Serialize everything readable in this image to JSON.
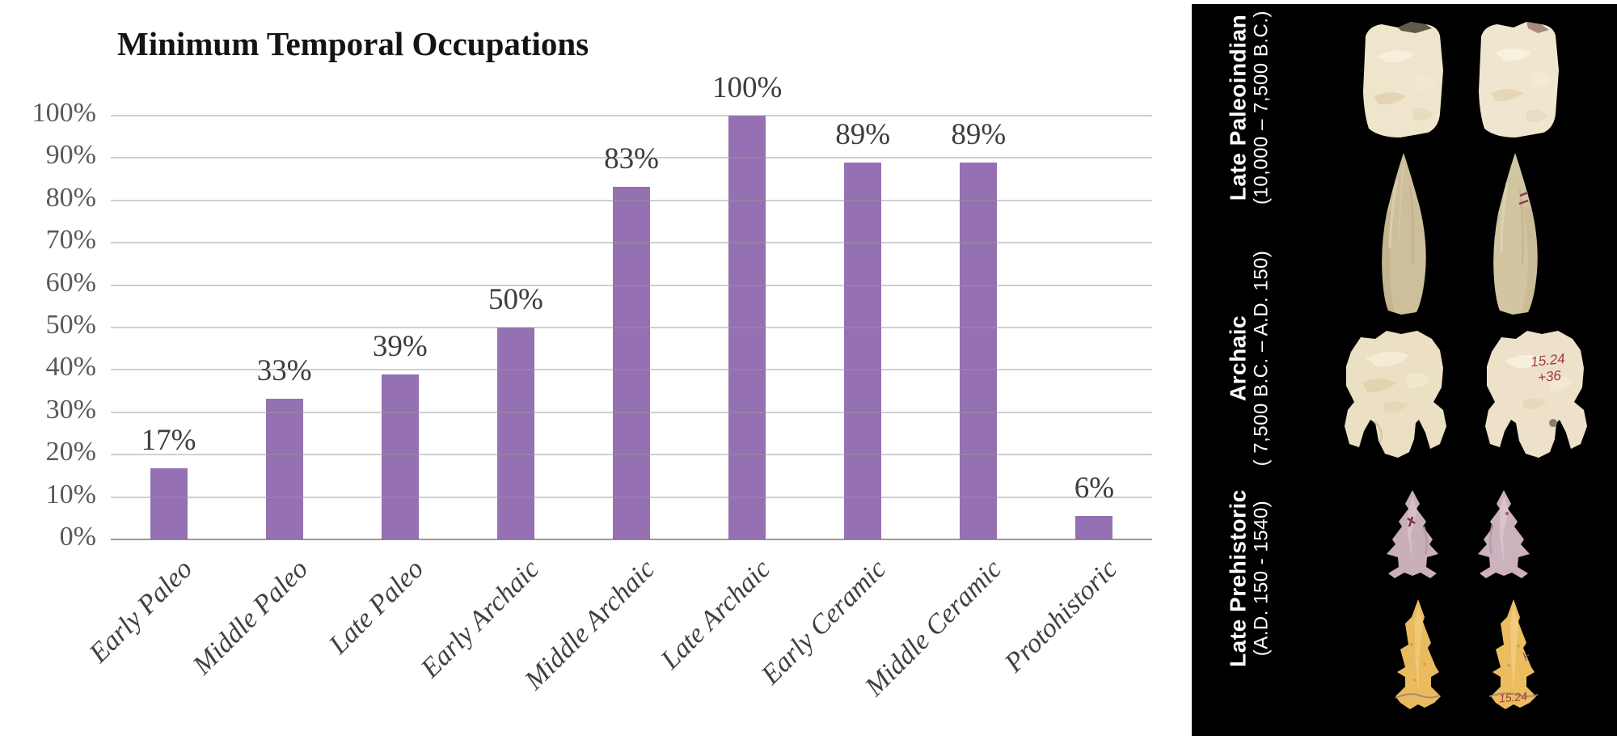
{
  "chart_data": {
    "type": "bar",
    "title": "Minimum Temporal Occupations",
    "categories": [
      "Early Paleo",
      "Middle Paleo",
      "Late Paleo",
      "Early Archaic",
      "Middle Archaic",
      "Late Archaic",
      "Early Ceramic",
      "Middle Ceramic",
      "Protohistoric"
    ],
    "values": [
      16.7,
      33.3,
      38.9,
      50,
      83.3,
      100,
      88.9,
      88.9,
      5.6
    ],
    "data_labels": [
      "17%",
      "33%",
      "39%",
      "50%",
      "83%",
      "100%",
      "89%",
      "89%",
      "6%"
    ],
    "y_ticks": [
      "100%",
      "90%",
      "80%",
      "70%",
      "60%",
      "50%",
      "40%",
      "30%",
      "20%",
      "10%",
      "0%"
    ],
    "ylim": [
      0,
      100
    ],
    "grid": true,
    "legend": "none",
    "bar_color": "#9571B3",
    "gridline_color": "#D9D9D9",
    "tick_label_color": "#595959",
    "data_label_color": "#3D3D3D",
    "category_label_color": "#404040"
  },
  "artifact_panel": {
    "background": "#000000",
    "text_color": "#FFFFFF",
    "sections": [
      {
        "period": "Late Paleoindian",
        "range": "(10,000 – 7,500 B.C.)"
      },
      {
        "period": "Archaic",
        "range": "( 7,500 B.C. – A.D. 150)"
      },
      {
        "period": "Late Prehistoric",
        "range": "(A.D. 150 - 1540)"
      }
    ],
    "catalog_marks": {
      "dart_point_line1": "15.24",
      "dart_point_line2": "+36",
      "arrow_point": "15.24"
    }
  }
}
